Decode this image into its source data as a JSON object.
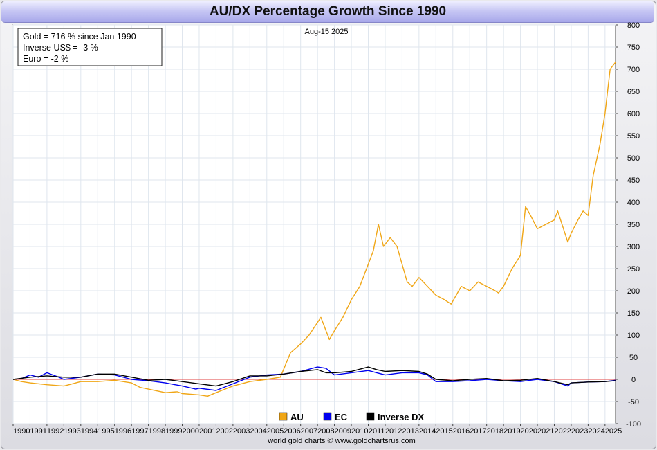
{
  "title": "AU/DX Percentage Growth Since 1990",
  "date_label": "Aug-15  2025",
  "info_box": [
    "Gold = 716 % since Jan 1990",
    "Inverse US$ = -3 %",
    "Euro = -2 %"
  ],
  "footer": "world gold charts © www.goldchartsrus.com",
  "colors": {
    "gold": "#f0a616",
    "euro": "#0000ee",
    "dollar": "#000000",
    "zero_line": "#e04040",
    "grid": "#dfe6ee"
  },
  "chart_data": {
    "type": "line",
    "title": "AU/DX Percentage Growth Since 1990",
    "xlim": [
      1990,
      2025.62
    ],
    "ylim": [
      -100,
      800
    ],
    "y_ticks": [
      -100,
      -50,
      0,
      50,
      100,
      150,
      200,
      250,
      300,
      350,
      400,
      450,
      500,
      550,
      600,
      650,
      700,
      750,
      800
    ],
    "x_tick_labels": [
      "1990",
      "1991",
      "1992",
      "1993",
      "1994",
      "1995",
      "1996",
      "1997",
      "1998",
      "1999",
      "2000",
      "2001",
      "2002",
      "2003",
      "2004",
      "2005",
      "2006",
      "2007",
      "2008",
      "2009",
      "2010",
      "2011",
      "2012",
      "2013",
      "2014",
      "2015",
      "2016",
      "2017",
      "2018",
      "2019",
      "2020",
      "2021",
      "2022",
      "2023",
      "2024",
      "2025"
    ],
    "legend": [
      "AU",
      "EC",
      "Inverse DX"
    ],
    "legend_position": "bottom-center",
    "grid": true,
    "series": [
      {
        "name": "AU",
        "color": "#f0a616",
        "x": [
          1990,
          1990.5,
          1991,
          1992,
          1993,
          1993.5,
          1994,
          1995,
          1996,
          1997,
          1997.5,
          1998,
          1999,
          1999.7,
          2000,
          2001,
          2001.5,
          2002,
          2003,
          2004,
          2005,
          2005.8,
          2006.4,
          2007,
          2007.5,
          2008.2,
          2008.7,
          2009,
          2009.5,
          2010,
          2010.5,
          2011,
          2011.3,
          2011.6,
          2011.9,
          2012.3,
          2012.7,
          2013,
          2013.3,
          2013.6,
          2014,
          2014.5,
          2015,
          2015.5,
          2015.9,
          2016.5,
          2017,
          2017.5,
          2018,
          2018.5,
          2018.7,
          2019,
          2019.5,
          2020,
          2020.3,
          2020.6,
          2021,
          2021.5,
          2022,
          2022.2,
          2022.8,
          2023,
          2023.4,
          2023.7,
          2024,
          2024.3,
          2024.7,
          2025,
          2025.3,
          2025.62
        ],
        "values": [
          0,
          -5,
          -8,
          -12,
          -15,
          -10,
          -5,
          -5,
          -2,
          -8,
          -18,
          -22,
          -30,
          -28,
          -32,
          -35,
          -38,
          -30,
          -15,
          -5,
          0,
          5,
          60,
          80,
          100,
          140,
          90,
          110,
          140,
          180,
          210,
          260,
          290,
          350,
          300,
          320,
          300,
          260,
          220,
          210,
          230,
          210,
          190,
          180,
          170,
          210,
          200,
          220,
          210,
          200,
          195,
          210,
          250,
          280,
          390,
          370,
          340,
          350,
          360,
          380,
          310,
          330,
          360,
          380,
          370,
          460,
          530,
          600,
          700,
          716
        ]
      },
      {
        "name": "EC",
        "color": "#0000ee",
        "x": [
          1990,
          1990.5,
          1991,
          1991.5,
          1992,
          1992.7,
          1993,
          1994,
          1995,
          1996,
          1997,
          1998,
          1999,
          2000,
          2000.8,
          2001,
          2002,
          2003,
          2004,
          2005,
          2006,
          2007,
          2008,
          2008.5,
          2009,
          2010,
          2011,
          2011.5,
          2012,
          2013,
          2014,
          2014.5,
          2015,
          2016,
          2017,
          2018,
          2019,
          2020,
          2021,
          2022,
          2022.8,
          2023,
          2024,
          2025,
          2025.62
        ],
        "values": [
          0,
          2,
          10,
          5,
          15,
          5,
          0,
          5,
          12,
          10,
          0,
          -3,
          -8,
          -15,
          -22,
          -20,
          -25,
          -10,
          5,
          10,
          12,
          18,
          28,
          25,
          10,
          15,
          20,
          15,
          10,
          15,
          15,
          10,
          -5,
          -5,
          -3,
          0,
          -3,
          -5,
          0,
          -5,
          -15,
          -8,
          -6,
          -5,
          -2
        ]
      },
      {
        "name": "Inverse DX",
        "color": "#000000",
        "x": [
          1990,
          1991,
          1992,
          1993,
          1994,
          1995,
          1996,
          1997,
          1998,
          1999,
          2000,
          2001,
          2002,
          2003,
          2004,
          2005,
          2006,
          2007,
          2008,
          2008.5,
          2009,
          2010,
          2011,
          2011.5,
          2012,
          2013,
          2014,
          2014.5,
          2015,
          2016,
          2017,
          2018,
          2019,
          2020,
          2021,
          2022,
          2022.8,
          2023,
          2024,
          2025,
          2025.62
        ],
        "values": [
          0,
          5,
          8,
          5,
          5,
          12,
          12,
          5,
          -2,
          0,
          -5,
          -10,
          -15,
          -5,
          8,
          8,
          12,
          18,
          22,
          15,
          15,
          18,
          28,
          22,
          18,
          20,
          18,
          12,
          0,
          -3,
          0,
          2,
          -3,
          -2,
          2,
          -5,
          -12,
          -8,
          -6,
          -5,
          -3
        ]
      }
    ]
  }
}
